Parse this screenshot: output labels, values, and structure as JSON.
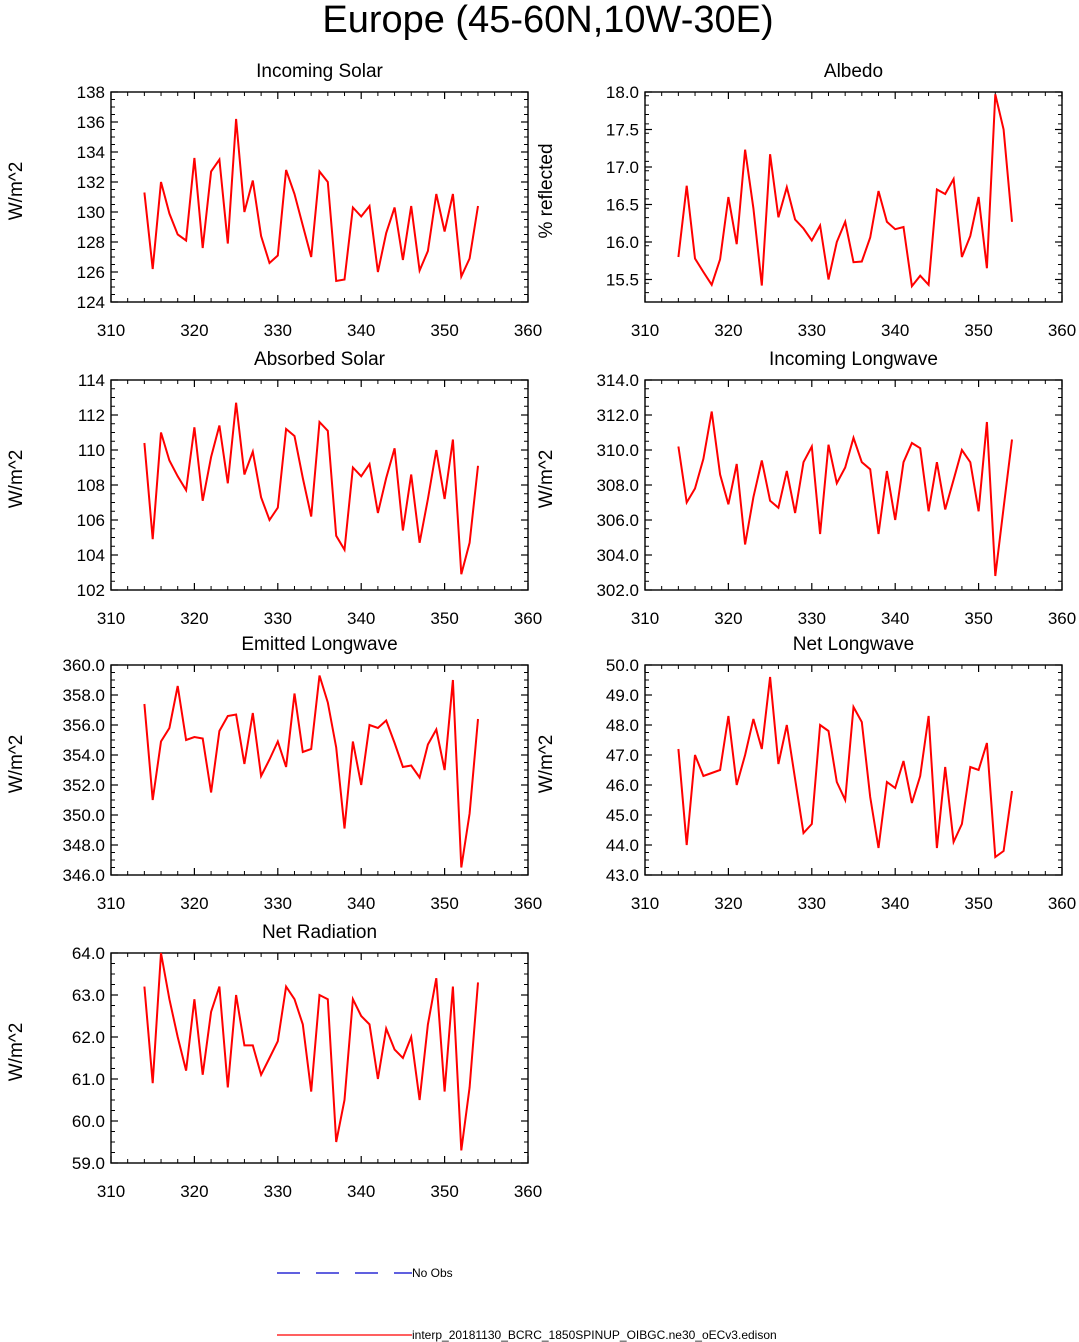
{
  "figure": {
    "title": "Europe (45-60N,10W-30E)"
  },
  "legend": {
    "obs_label": "No Obs",
    "obs_color": "#0000cc",
    "model_label": "interp_20181130_BCRC_1850SPINUP_OIBGC.ne30_oECv3.edison",
    "model_color": "#ff0000"
  },
  "chart_data": [
    {
      "type": "line",
      "title": "Incoming Solar",
      "ylabel": "W/m^2",
      "xlim": [
        310,
        360
      ],
      "ylim": [
        124,
        138
      ],
      "xticks": [
        "310",
        "320",
        "330",
        "340",
        "350",
        "360"
      ],
      "yticks": [
        "124",
        "126",
        "128",
        "130",
        "132",
        "134",
        "136",
        "138"
      ],
      "series": [
        {
          "x": [
            314,
            315,
            316,
            317,
            318,
            319,
            320,
            321,
            322,
            323,
            324,
            325,
            326,
            327,
            328,
            329,
            330,
            331,
            332,
            333,
            334,
            335,
            336,
            337,
            338,
            339,
            340,
            341,
            342,
            343,
            344,
            345,
            346,
            347,
            348,
            349,
            350,
            351,
            352,
            353,
            354
          ],
          "values": [
            131.3,
            126.2,
            132.0,
            129.9,
            128.5,
            128.1,
            133.6,
            127.6,
            132.7,
            133.5,
            127.9,
            136.2,
            130.0,
            132.1,
            128.4,
            126.6,
            127.1,
            132.8,
            131.2,
            129.1,
            127.0,
            132.7,
            132.0,
            125.4,
            125.5,
            130.3,
            129.7,
            130.4,
            126.0,
            128.6,
            130.3,
            126.8,
            130.4,
            126.1,
            127.4,
            131.2,
            128.7,
            131.2,
            125.7,
            126.9,
            130.4
          ]
        }
      ]
    },
    {
      "type": "line",
      "title": "Albedo",
      "ylabel": "% reflected",
      "xlim": [
        310,
        360
      ],
      "ylim": [
        15.2,
        18.0
      ],
      "xticks": [
        "310",
        "320",
        "330",
        "340",
        "350",
        "360"
      ],
      "yticks": [
        "15.5",
        "16.0",
        "16.5",
        "17.0",
        "17.5",
        "18.0"
      ],
      "series": [
        {
          "x": [
            314,
            315,
            316,
            317,
            318,
            319,
            320,
            321,
            322,
            323,
            324,
            325,
            326,
            327,
            328,
            329,
            330,
            331,
            332,
            333,
            334,
            335,
            336,
            337,
            338,
            339,
            340,
            341,
            342,
            343,
            344,
            345,
            346,
            347,
            348,
            349,
            350,
            351,
            352,
            353,
            354
          ],
          "values": [
            15.8,
            16.75,
            15.78,
            15.6,
            15.43,
            15.77,
            16.6,
            15.97,
            17.23,
            16.45,
            15.42,
            17.17,
            16.33,
            16.73,
            16.3,
            16.18,
            16.02,
            16.22,
            15.5,
            16.0,
            16.27,
            15.73,
            15.74,
            16.06,
            16.68,
            16.27,
            16.17,
            16.2,
            15.41,
            15.55,
            15.43,
            16.7,
            16.64,
            16.84,
            15.8,
            16.08,
            16.6,
            15.65,
            17.97,
            17.5,
            16.27
          ]
        }
      ]
    },
    {
      "type": "line",
      "title": "Absorbed Solar",
      "ylabel": "W/m^2",
      "xlim": [
        310,
        360
      ],
      "ylim": [
        102,
        114
      ],
      "xticks": [
        "310",
        "320",
        "330",
        "340",
        "350",
        "360"
      ],
      "yticks": [
        "102",
        "104",
        "106",
        "108",
        "110",
        "112",
        "114"
      ],
      "series": [
        {
          "x": [
            314,
            315,
            316,
            317,
            318,
            319,
            320,
            321,
            322,
            323,
            324,
            325,
            326,
            327,
            328,
            329,
            330,
            331,
            332,
            333,
            334,
            335,
            336,
            337,
            338,
            339,
            340,
            341,
            342,
            343,
            344,
            345,
            346,
            347,
            348,
            349,
            350,
            351,
            352,
            353,
            354
          ],
          "values": [
            110.4,
            104.9,
            111.0,
            109.4,
            108.5,
            107.7,
            111.3,
            107.1,
            109.6,
            111.4,
            108.1,
            112.7,
            108.6,
            109.9,
            107.3,
            106.0,
            106.7,
            111.2,
            110.8,
            108.4,
            106.2,
            111.6,
            111.1,
            105.1,
            104.3,
            109.0,
            108.5,
            109.2,
            106.4,
            108.4,
            110.1,
            105.4,
            108.6,
            104.7,
            107.2,
            110.0,
            107.2,
            110.6,
            102.9,
            104.7,
            109.1
          ]
        }
      ]
    },
    {
      "type": "line",
      "title": "Incoming Longwave",
      "ylabel": "W/m^2",
      "xlim": [
        310,
        360
      ],
      "ylim": [
        302.0,
        314.0
      ],
      "xticks": [
        "310",
        "320",
        "330",
        "340",
        "350",
        "360"
      ],
      "yticks": [
        "302.0",
        "304.0",
        "306.0",
        "308.0",
        "310.0",
        "312.0",
        "314.0"
      ],
      "series": [
        {
          "x": [
            314,
            315,
            316,
            317,
            318,
            319,
            320,
            321,
            322,
            323,
            324,
            325,
            326,
            327,
            328,
            329,
            330,
            331,
            332,
            333,
            334,
            335,
            336,
            337,
            338,
            339,
            340,
            341,
            342,
            343,
            344,
            345,
            346,
            347,
            348,
            349,
            350,
            351,
            352,
            353,
            354
          ],
          "values": [
            310.2,
            307.0,
            307.8,
            309.5,
            312.2,
            308.6,
            306.9,
            309.2,
            304.6,
            307.3,
            309.4,
            307.1,
            306.7,
            308.8,
            306.4,
            309.3,
            310.2,
            305.2,
            310.3,
            308.1,
            309.0,
            310.7,
            309.3,
            308.9,
            305.2,
            308.8,
            306.0,
            309.3,
            310.4,
            310.1,
            306.5,
            309.3,
            306.6,
            308.3,
            310.0,
            309.3,
            306.5,
            311.6,
            302.8,
            306.7,
            310.6
          ]
        }
      ]
    },
    {
      "type": "line",
      "title": "Emitted Longwave",
      "ylabel": "W/m^2",
      "xlim": [
        310,
        360
      ],
      "ylim": [
        346.0,
        360.0
      ],
      "xticks": [
        "310",
        "320",
        "330",
        "340",
        "350",
        "360"
      ],
      "yticks": [
        "346.0",
        "348.0",
        "350.0",
        "352.0",
        "354.0",
        "356.0",
        "358.0",
        "360.0"
      ],
      "series": [
        {
          "x": [
            314,
            315,
            316,
            317,
            318,
            319,
            320,
            321,
            322,
            323,
            324,
            325,
            326,
            327,
            328,
            329,
            330,
            331,
            332,
            333,
            334,
            335,
            336,
            337,
            338,
            339,
            340,
            341,
            342,
            343,
            344,
            345,
            346,
            347,
            348,
            349,
            350,
            351,
            352,
            353,
            354
          ],
          "values": [
            357.4,
            351.0,
            354.9,
            355.8,
            358.6,
            355.0,
            355.2,
            355.1,
            351.5,
            355.6,
            356.6,
            356.7,
            353.4,
            356.8,
            352.6,
            353.7,
            354.9,
            353.2,
            358.1,
            354.2,
            354.4,
            359.3,
            357.5,
            354.5,
            349.1,
            354.9,
            352.0,
            356.0,
            355.8,
            356.3,
            354.8,
            353.2,
            353.3,
            352.5,
            354.7,
            355.7,
            353.0,
            359.0,
            346.5,
            350.1,
            356.4
          ]
        }
      ]
    },
    {
      "type": "line",
      "title": "Net Longwave",
      "ylabel": "W/m^2",
      "xlim": [
        310,
        360
      ],
      "ylim": [
        43.0,
        50.0
      ],
      "xticks": [
        "310",
        "320",
        "330",
        "340",
        "350",
        "360"
      ],
      "yticks": [
        "43.0",
        "44.0",
        "45.0",
        "46.0",
        "47.0",
        "48.0",
        "49.0",
        "50.0"
      ],
      "series": [
        {
          "x": [
            314,
            315,
            316,
            317,
            318,
            319,
            320,
            321,
            322,
            323,
            324,
            325,
            326,
            327,
            328,
            329,
            330,
            331,
            332,
            333,
            334,
            335,
            336,
            337,
            338,
            339,
            340,
            341,
            342,
            343,
            344,
            345,
            346,
            347,
            348,
            349,
            350,
            351,
            352,
            353,
            354
          ],
          "values": [
            47.2,
            44.0,
            47.0,
            46.3,
            46.4,
            46.5,
            48.3,
            46.0,
            47.0,
            48.2,
            47.2,
            49.6,
            46.7,
            48.0,
            46.2,
            44.4,
            44.7,
            48.0,
            47.8,
            46.1,
            45.5,
            48.6,
            48.1,
            45.6,
            43.9,
            46.1,
            45.9,
            46.8,
            45.4,
            46.3,
            48.3,
            43.9,
            46.6,
            44.1,
            44.7,
            46.6,
            46.5,
            47.4,
            43.6,
            43.8,
            45.8
          ]
        }
      ]
    },
    {
      "type": "line",
      "title": "Net Radiation",
      "ylabel": "W/m^2",
      "xlim": [
        310,
        360
      ],
      "ylim": [
        59.0,
        64.0
      ],
      "xticks": [
        "310",
        "320",
        "330",
        "340",
        "350",
        "360"
      ],
      "yticks": [
        "59.0",
        "60.0",
        "61.0",
        "62.0",
        "63.0",
        "64.0"
      ],
      "series": [
        {
          "x": [
            314,
            315,
            316,
            317,
            318,
            319,
            320,
            321,
            322,
            323,
            324,
            325,
            326,
            327,
            328,
            329,
            330,
            331,
            332,
            333,
            334,
            335,
            336,
            337,
            338,
            339,
            340,
            341,
            342,
            343,
            344,
            345,
            346,
            347,
            348,
            349,
            350,
            351,
            352,
            353,
            354
          ],
          "values": [
            63.2,
            60.9,
            64.0,
            62.9,
            62.0,
            61.2,
            62.9,
            61.1,
            62.6,
            63.2,
            60.8,
            63.0,
            61.8,
            61.8,
            61.1,
            61.5,
            61.9,
            63.2,
            62.9,
            62.3,
            60.7,
            63.0,
            62.9,
            59.5,
            60.5,
            62.9,
            62.5,
            62.3,
            61.0,
            62.2,
            61.7,
            61.5,
            62.0,
            60.5,
            62.3,
            63.4,
            60.7,
            63.2,
            59.3,
            60.8,
            63.3
          ]
        }
      ]
    }
  ]
}
